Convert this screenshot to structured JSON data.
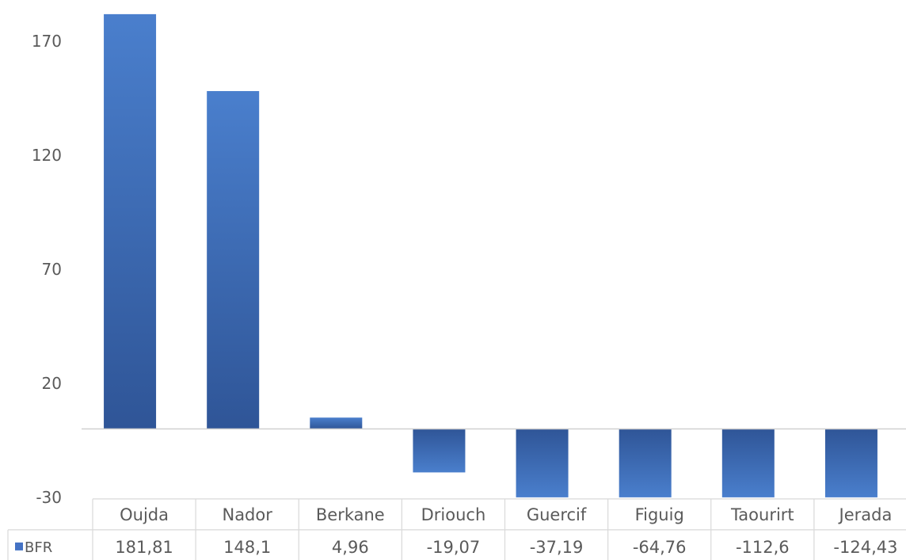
{
  "chart_data": {
    "type": "bar",
    "categories": [
      "Oujda",
      "Nador",
      "Berkane",
      "Driouch",
      "Guercif",
      "Figuig",
      "Taourirt",
      "Jerada"
    ],
    "series": [
      {
        "name": "BFR",
        "values": [
          181.81,
          148.1,
          4.96,
          -19.07,
          -37.19,
          -64.76,
          -112.6,
          -124.43
        ],
        "value_labels": [
          "181,81",
          "148,1",
          "4,96",
          "-19,07",
          "-37,19",
          "-64,76",
          "-112,6",
          "-124,43"
        ],
        "color": "#4472c4"
      }
    ],
    "y_ticks": [
      "170",
      "120",
      "70",
      "20",
      "-30"
    ],
    "ylim": [
      -30,
      182
    ],
    "grid": false,
    "legend": "data-table",
    "data_table": true,
    "bar_color_light": "#5b8fd6",
    "bar_color_dark": "#2f5597"
  }
}
